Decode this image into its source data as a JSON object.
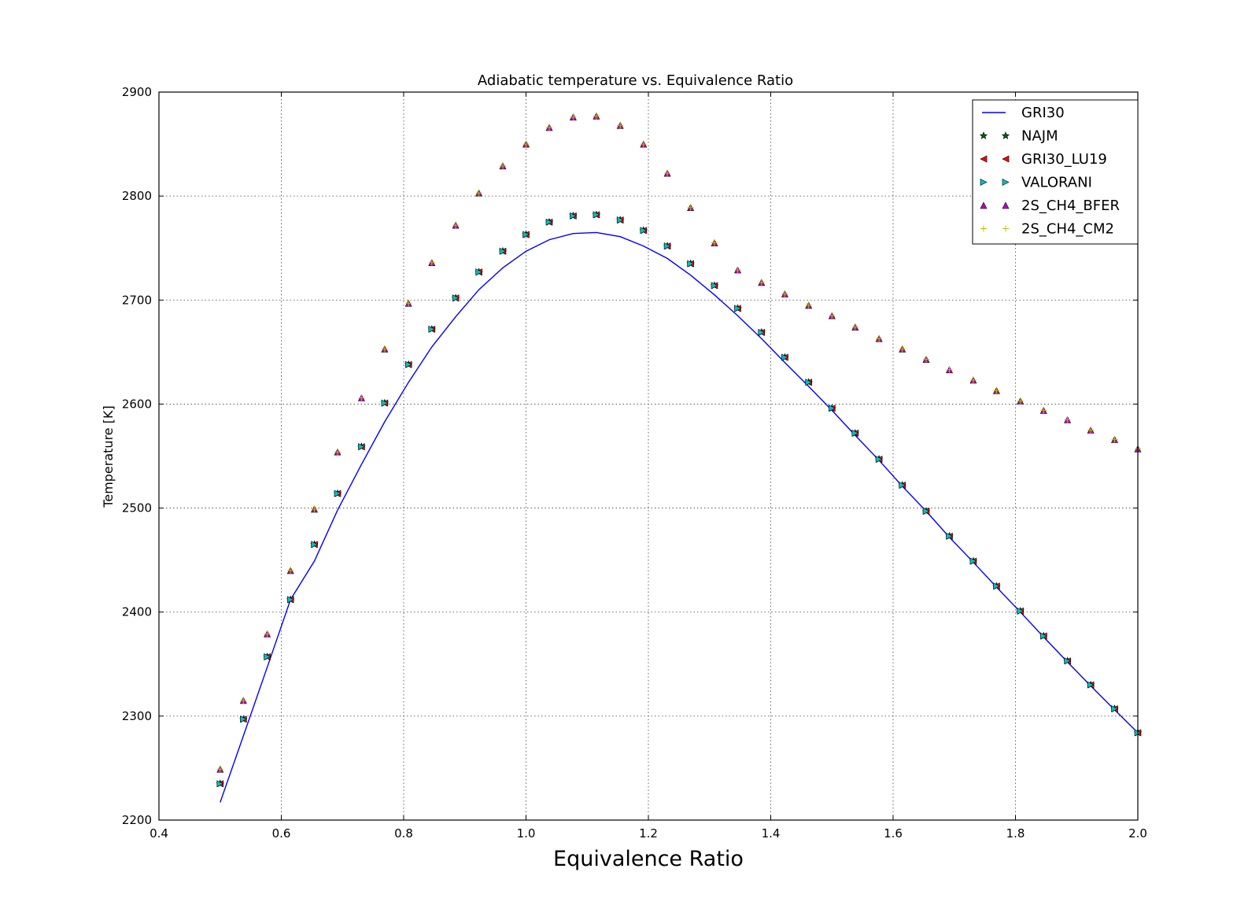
{
  "chart_data": {
    "type": "scatter",
    "title": "Adiabatic temperature vs. Equivalence Ratio",
    "xlabel": "Equivalence Ratio",
    "ylabel": "Temperature [K]",
    "xlim": [
      0.4,
      2.0
    ],
    "ylim": [
      2200,
      2900
    ],
    "xticks": [
      "0.4",
      "0.6",
      "0.8",
      "1.0",
      "1.2",
      "1.4",
      "1.6",
      "1.8",
      "2.0"
    ],
    "yticks": [
      "2200",
      "2300",
      "2400",
      "2500",
      "2600",
      "2700",
      "2800",
      "2900"
    ],
    "grid": true,
    "legend_position": "top-right",
    "x": [
      0.5,
      0.538,
      0.577,
      0.615,
      0.654,
      0.692,
      0.731,
      0.769,
      0.808,
      0.846,
      0.885,
      0.923,
      0.962,
      1.0,
      1.038,
      1.077,
      1.115,
      1.154,
      1.192,
      1.231,
      1.269,
      1.308,
      1.346,
      1.385,
      1.423,
      1.462,
      1.5,
      1.538,
      1.577,
      1.615,
      1.654,
      1.692,
      1.731,
      1.769,
      1.808,
      1.846,
      1.885,
      1.923,
      1.962,
      2.0
    ],
    "series": [
      {
        "name": "GRI30",
        "style": "line",
        "marker": "none",
        "color": "#0000ff",
        "values": [
          2217,
          2281,
          2347,
          2412,
          2449,
          2498,
          2542,
          2583,
          2621,
          2655,
          2684,
          2710,
          2731,
          2747,
          2758,
          2764,
          2765,
          2761,
          2752,
          2740,
          2724,
          2705,
          2685,
          2663,
          2640,
          2617,
          2594,
          2570,
          2546,
          2521,
          2497,
          2472,
          2448,
          2424,
          2400,
          2376,
          2352,
          2329,
          2306,
          2284
        ]
      },
      {
        "name": "NAJM",
        "style": "marker",
        "marker": "star",
        "color": "#006400",
        "values": [
          2235,
          2297,
          2357,
          2412,
          2465,
          2514,
          2559,
          2601,
          2638,
          2672,
          2702,
          2727,
          2747,
          2763,
          2775,
          2781,
          2782,
          2777,
          2767,
          2752,
          2735,
          2714,
          2692,
          2669,
          2645,
          2621,
          2596,
          2572,
          2547,
          2522,
          2497,
          2473,
          2449,
          2425,
          2401,
          2377,
          2353,
          2330,
          2307,
          2284
        ]
      },
      {
        "name": "GRI30_LU19",
        "style": "marker",
        "marker": "triangle-left",
        "color": "#ff0000",
        "values": [
          2235,
          2297,
          2357,
          2412,
          2465,
          2514,
          2559,
          2601,
          2638,
          2672,
          2702,
          2727,
          2747,
          2763,
          2775,
          2781,
          2782,
          2777,
          2767,
          2752,
          2735,
          2714,
          2692,
          2669,
          2645,
          2621,
          2596,
          2572,
          2547,
          2522,
          2497,
          2473,
          2449,
          2425,
          2401,
          2377,
          2353,
          2330,
          2307,
          2284
        ]
      },
      {
        "name": "VALORANI",
        "style": "marker",
        "marker": "triangle-right",
        "color": "#00bfbf",
        "values": [
          2235,
          2297,
          2357,
          2412,
          2465,
          2514,
          2559,
          2601,
          2638,
          2672,
          2702,
          2727,
          2747,
          2763,
          2775,
          2781,
          2782,
          2777,
          2767,
          2752,
          2735,
          2714,
          2692,
          2669,
          2645,
          2621,
          2596,
          2572,
          2547,
          2522,
          2497,
          2473,
          2449,
          2425,
          2401,
          2377,
          2353,
          2330,
          2307,
          2284
        ]
      },
      {
        "name": "2S_CH4_BFER",
        "style": "marker",
        "marker": "triangle-up",
        "color": "#bf00bf",
        "values": [
          2249,
          2315,
          2379,
          2440,
          2499,
          2554,
          2606,
          2653,
          2697,
          2736,
          2772,
          2803,
          2829,
          2850,
          2866,
          2876,
          2877,
          2868,
          2850,
          2822,
          2789,
          2755,
          2729,
          2717,
          2706,
          2695,
          2685,
          2674,
          2663,
          2653,
          2643,
          2633,
          2623,
          2613,
          2603,
          2594,
          2585,
          2575,
          2566,
          2557
        ]
      },
      {
        "name": "2S_CH4_CM2",
        "style": "marker",
        "marker": "plus",
        "color": "#bfbf00",
        "values": [
          2249,
          2315,
          2379,
          2440,
          2499,
          2554,
          2606,
          2653,
          2697,
          2736,
          2772,
          2803,
          2829,
          2850,
          2866,
          2876,
          2877,
          2868,
          2850,
          2822,
          2789,
          2755,
          2729,
          2717,
          2706,
          2695,
          2685,
          2674,
          2663,
          2653,
          2643,
          2633,
          2623,
          2613,
          2603,
          2594,
          2585,
          2575,
          2566,
          2557
        ]
      }
    ]
  }
}
